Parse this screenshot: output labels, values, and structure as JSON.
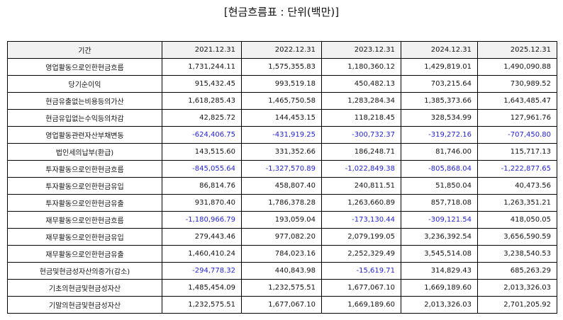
{
  "title": "[현금흐름표 : 단위(백만)]",
  "colors": {
    "negative": "#2323d0",
    "header_bg": "#f2f2f2"
  },
  "header": [
    "기간",
    "2021.12.31",
    "2022.12.31",
    "2023.12.31",
    "2024.12.31",
    "2025.12.31"
  ],
  "rows": [
    {
      "label": "영업활동으로인한현금흐름",
      "values": [
        "1,731,244.11",
        "1,575,355.83",
        "1,180,360.12",
        "1,429,819.01",
        "1,490,090.88"
      ]
    },
    {
      "label": "당기순이익",
      "values": [
        "915,432.45",
        "993,519.18",
        "450,482.13",
        "703,215.64",
        "730,989.52"
      ]
    },
    {
      "label": "현금유출없는비용등의가산",
      "values": [
        "1,618,285.43",
        "1,465,750.58",
        "1,283,284.34",
        "1,385,373.66",
        "1,643,485.47"
      ]
    },
    {
      "label": "현금유입없는수익등의차감",
      "values": [
        "42,825.72",
        "144,453.15",
        "118,218.45",
        "328,534.99",
        "127,961.76"
      ]
    },
    {
      "label": "영업활동관련자산부채변동",
      "values": [
        "-624,406.75",
        "-431,919.25",
        "-300,732.37",
        "-319,272.16",
        "-707,450.80"
      ]
    },
    {
      "label": "법인세의납부(환급)",
      "values": [
        "143,515.60",
        "331,352.66",
        "186,248.71",
        "81,746.00",
        "115,717.13"
      ]
    },
    {
      "label": "투자활동으로인한현금흐름",
      "values": [
        "-845,055.64",
        "-1,327,570.89",
        "-1,022,849.38",
        "-805,868.04",
        "-1,222,877.65"
      ]
    },
    {
      "label": "투자활동으로인한현금유입",
      "values": [
        "86,814.76",
        "458,807.40",
        "240,811.51",
        "51,850.04",
        "40,473.56"
      ]
    },
    {
      "label": "투자활동으로인한현금유출",
      "values": [
        "931,870.40",
        "1,786,378.28",
        "1,263,660.89",
        "857,718.08",
        "1,263,351.21"
      ]
    },
    {
      "label": "재무활동으로인한현금흐름",
      "values": [
        "-1,180,966.79",
        "193,059.04",
        "-173,130.44",
        "-309,121.54",
        "418,050.05"
      ]
    },
    {
      "label": "재무활동으로인한현금유입",
      "values": [
        "279,443.46",
        "977,082.20",
        "2,079,199.05",
        "3,236,392.54",
        "3,656,590.59"
      ]
    },
    {
      "label": "재무활동으로인한현금유출",
      "values": [
        "1,460,410.24",
        "784,023.16",
        "2,252,329.49",
        "3,545,514.08",
        "3,238,540.53"
      ]
    },
    {
      "label": "현금및현금성자산의증가(감소)",
      "values": [
        "-294,778.32",
        "440,843.98",
        "-15,619.71",
        "314,829.43",
        "685,263.29"
      ]
    },
    {
      "label": "기초의현금및현금성자산",
      "values": [
        "1,485,454.09",
        "1,232,575.51",
        "1,677,067.10",
        "1,669,189.60",
        "2,013,326.03"
      ]
    },
    {
      "label": "기말의현금및현금성자산",
      "values": [
        "1,232,575.51",
        "1,677,067.10",
        "1,669,189.60",
        "2,013,326.03",
        "2,701,205.92"
      ]
    }
  ]
}
